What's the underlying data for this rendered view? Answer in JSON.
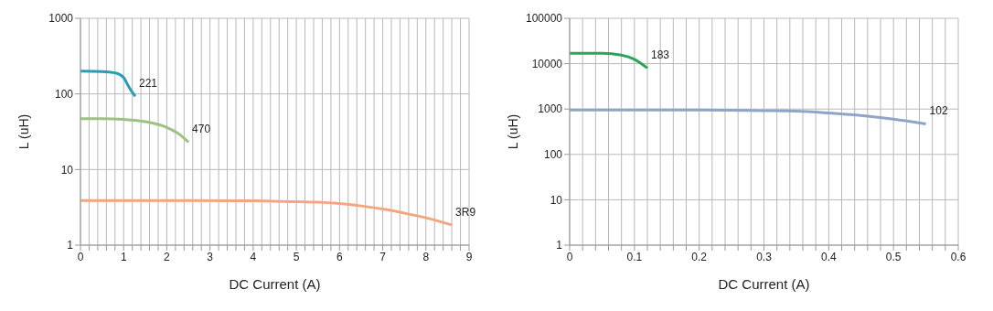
{
  "chart_data": [
    {
      "type": "line",
      "xlabel": "DC Current (A)",
      "ylabel": "L (uH)",
      "log": "y",
      "grid": true,
      "xlim": [
        0,
        9
      ],
      "ylim": [
        1,
        1000
      ],
      "yticks": [
        1,
        10,
        100,
        1000
      ],
      "xticks": [
        0,
        {
          "value": 0.2,
          "label": null
        },
        {
          "value": 0.4,
          "label": null
        },
        {
          "value": 0.6,
          "label": null
        },
        {
          "value": 0.8,
          "label": null
        },
        1,
        {
          "value": 1.2,
          "label": null
        },
        {
          "value": 1.4,
          "label": null
        },
        {
          "value": 1.6,
          "label": null
        },
        {
          "value": 1.8,
          "label": null
        },
        2,
        {
          "value": 2.2,
          "label": null
        },
        {
          "value": 2.4,
          "label": null
        },
        {
          "value": 2.6,
          "label": null
        },
        {
          "value": 2.8,
          "label": null
        },
        3,
        {
          "value": 3.2,
          "label": null
        },
        {
          "value": 3.4,
          "label": null
        },
        {
          "value": 3.6,
          "label": null
        },
        {
          "value": 3.8,
          "label": null
        },
        4,
        {
          "value": 4.2,
          "label": null
        },
        {
          "value": 4.4,
          "label": null
        },
        {
          "value": 4.6,
          "label": null
        },
        {
          "value": 4.8,
          "label": null
        },
        5,
        {
          "value": 5.2,
          "label": null
        },
        {
          "value": 5.4,
          "label": null
        },
        {
          "value": 5.6,
          "label": null
        },
        {
          "value": 5.8,
          "label": null
        },
        6,
        {
          "value": 6.2,
          "label": null
        },
        {
          "value": 6.4,
          "label": null
        },
        {
          "value": 6.6,
          "label": null
        },
        {
          "value": 6.8,
          "label": null
        },
        7,
        {
          "value": 7.2,
          "label": null
        },
        {
          "value": 7.4,
          "label": null
        },
        {
          "value": 7.6,
          "label": null
        },
        {
          "value": 7.8,
          "label": null
        },
        8,
        {
          "value": 8.2,
          "label": null
        },
        {
          "value": 8.4,
          "label": null
        },
        {
          "value": 8.6,
          "label": null
        },
        {
          "value": 8.8,
          "label": null
        },
        9
      ],
      "series": [
        {
          "name": "221",
          "color": "#2a9db5",
          "x": [
            0,
            0.5,
            0.8,
            1.0,
            1.1,
            1.2,
            1.27
          ],
          "values": [
            200,
            198,
            190,
            165,
            130,
            105,
            93
          ]
        },
        {
          "name": "470",
          "color": "#9dc183",
          "x": [
            0,
            0.5,
            1.0,
            1.5,
            2.0,
            2.3,
            2.5
          ],
          "values": [
            47,
            47,
            46,
            43,
            36,
            29,
            23
          ]
        },
        {
          "name": "3R9",
          "color": "#f4a582",
          "x": [
            0,
            2,
            4,
            5,
            5.5,
            6,
            6.5,
            7,
            7.5,
            8,
            8.6
          ],
          "values": [
            3.9,
            3.9,
            3.85,
            3.75,
            3.7,
            3.55,
            3.3,
            3.0,
            2.65,
            2.3,
            1.85
          ]
        }
      ]
    },
    {
      "type": "line",
      "xlabel": "DC Current (A)",
      "ylabel": "L (uH)",
      "log": "y",
      "grid": true,
      "xlim": [
        0,
        0.6
      ],
      "ylim": [
        1,
        100000
      ],
      "yticks": [
        1,
        10,
        100,
        1000,
        10000,
        100000
      ],
      "xticks": [
        0,
        {
          "value": 0.02,
          "label": null
        },
        {
          "value": 0.04,
          "label": null
        },
        {
          "value": 0.06,
          "label": null
        },
        {
          "value": 0.08,
          "label": null
        },
        0.1,
        {
          "value": 0.12,
          "label": null
        },
        {
          "value": 0.14,
          "label": null
        },
        {
          "value": 0.16,
          "label": null
        },
        {
          "value": 0.18,
          "label": null
        },
        0.2,
        {
          "value": 0.22,
          "label": null
        },
        {
          "value": 0.24,
          "label": null
        },
        {
          "value": 0.26,
          "label": null
        },
        {
          "value": 0.28,
          "label": null
        },
        0.3,
        {
          "value": 0.32,
          "label": null
        },
        {
          "value": 0.34,
          "label": null
        },
        {
          "value": 0.36,
          "label": null
        },
        {
          "value": 0.38,
          "label": null
        },
        0.4,
        {
          "value": 0.42,
          "label": null
        },
        {
          "value": 0.44,
          "label": null
        },
        {
          "value": 0.46,
          "label": null
        },
        {
          "value": 0.48,
          "label": null
        },
        0.5,
        {
          "value": 0.52,
          "label": null
        },
        {
          "value": 0.54,
          "label": null
        },
        {
          "value": 0.56,
          "label": null
        },
        {
          "value": 0.58,
          "label": null
        },
        0.6
      ],
      "series": [
        {
          "name": "183",
          "color": "#2aa55a",
          "x": [
            0,
            0.05,
            0.08,
            0.1,
            0.12
          ],
          "values": [
            17000,
            17000,
            15500,
            12500,
            8000
          ]
        },
        {
          "name": "102",
          "color": "#8fa5c8",
          "x": [
            0,
            0.2,
            0.3,
            0.35,
            0.4,
            0.45,
            0.5,
            0.55
          ],
          "values": [
            950,
            950,
            920,
            900,
            820,
            720,
            600,
            470
          ]
        }
      ]
    }
  ]
}
